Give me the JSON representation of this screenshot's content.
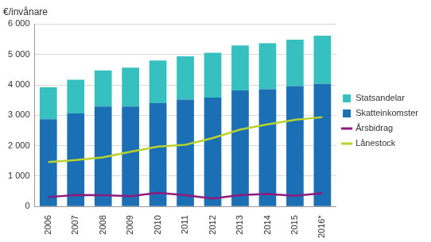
{
  "chart_data": {
    "type": "bar",
    "y_label": "€/invånare",
    "categories": [
      "2006",
      "2007",
      "2008",
      "2009",
      "2010",
      "2011",
      "2012",
      "2013",
      "2014",
      "2015",
      "2016*"
    ],
    "stacked": true,
    "grid": true,
    "legend": "right",
    "ylim": [
      0,
      6000
    ],
    "yticks": [
      0,
      {
        "value": 1000,
        "label": "1 000"
      },
      {
        "value": 2000,
        "label": "2 000"
      },
      {
        "value": 3000,
        "label": "3 000"
      },
      {
        "value": 4000,
        "label": "4 000"
      },
      {
        "value": 5000,
        "label": "5 000"
      },
      {
        "value": 6000,
        "label": "6 000"
      }
    ],
    "series": [
      {
        "name": "Statsandelar",
        "type": "bar",
        "color": "#37c0c0",
        "values": [
          1050,
          1110,
          1190,
          1280,
          1400,
          1420,
          1480,
          1480,
          1510,
          1530,
          1590
        ]
      },
      {
        "name": "Skatteinkomster",
        "type": "bar",
        "color": "#1b6fb5",
        "values": [
          2870,
          3060,
          3290,
          3290,
          3400,
          3520,
          3580,
          3820,
          3860,
          3960,
          4030
        ]
      },
      {
        "name": "Årsbidrag",
        "type": "line",
        "color": "#8e1a7e",
        "values": [
          310,
          380,
          370,
          340,
          450,
          370,
          260,
          380,
          410,
          350,
          440
        ]
      },
      {
        "name": "Lånestock",
        "type": "line",
        "color": "#b9d22d",
        "values": [
          1460,
          1530,
          1620,
          1800,
          1970,
          2030,
          2250,
          2530,
          2700,
          2850,
          2940
        ]
      }
    ]
  }
}
